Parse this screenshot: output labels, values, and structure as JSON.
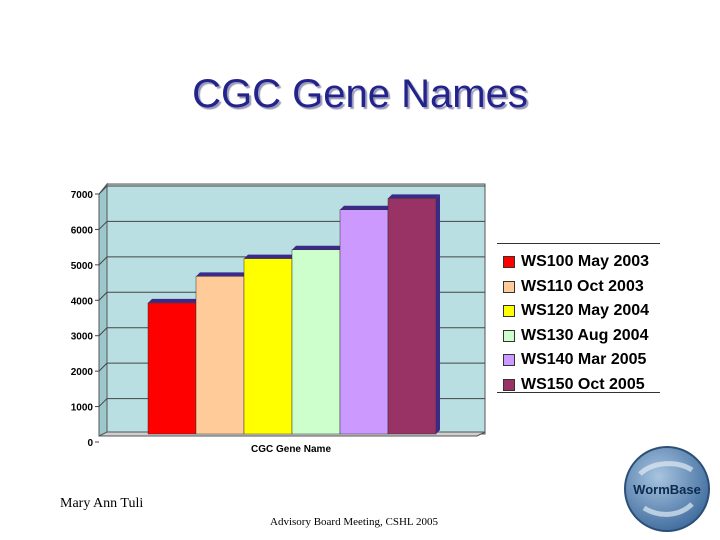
{
  "title": "CGC Gene Names",
  "author": "Mary Ann Tuli",
  "footer": "Advisory Board Meeting, CSHL 2005",
  "logo": {
    "text": "WormBase",
    "icon": "wormbase-logo-icon"
  },
  "colors": {
    "plot_background": "#b9dfe2",
    "title": "#23238c"
  },
  "chart_data": {
    "type": "bar",
    "title": "",
    "xlabel": "CGC Gene Name",
    "ylabel": "",
    "ylim": [
      0,
      7000
    ],
    "yticks": [
      "0",
      "1000",
      "2000",
      "3000",
      "4000",
      "5000",
      "6000",
      "7000"
    ],
    "categories": [
      "CGC Gene Name"
    ],
    "grid": true,
    "legend_position": "right",
    "series": [
      {
        "name": "WS100 May 2003",
        "values": [
          3700
        ],
        "color": "#ff0000"
      },
      {
        "name": "WS110 Oct 2003",
        "values": [
          4450
        ],
        "color": "#ffcc99"
      },
      {
        "name": "WS120 May 2004",
        "values": [
          4950
        ],
        "color": "#ffff00"
      },
      {
        "name": "WS130 Aug 2004",
        "values": [
          5200
        ],
        "color": "#ccffcc"
      },
      {
        "name": "WS140 Mar 2005",
        "values": [
          6330
        ],
        "color": "#cc99ff"
      },
      {
        "name": "WS150 Oct 2005",
        "values": [
          6650
        ],
        "color": "#993366"
      }
    ]
  }
}
